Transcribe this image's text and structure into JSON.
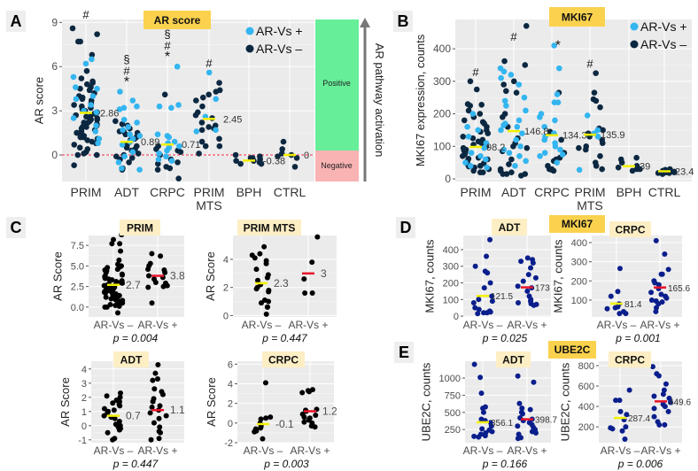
{
  "colors": {
    "ar_vs_pos": "#33b5f0",
    "ar_vs_neg": "#0c2841",
    "black_points": "#000000",
    "navy_points": "#0a1e8c",
    "mean_yellow": "#f2f000",
    "mean_red": "#e8132b",
    "panel_bg": "#ebebeb",
    "title_box_main": "#fbd24e",
    "title_box_sub": "#fdeec4",
    "positive": "#66ee99",
    "negative": "#f9b3b3",
    "zero_line": "#f08a9a"
  },
  "letters": {
    "A": "A",
    "B": "B",
    "C": "C",
    "D": "D",
    "E": "E"
  },
  "legend": {
    "pos": "AR-Vs +",
    "neg": "AR-Vs –"
  },
  "side_scale": {
    "positive": "Positive",
    "negative": "Negative",
    "arrow_label": "AR pathway activation"
  },
  "section_titles": {
    "D": "MKI67",
    "E": "UBE2C"
  },
  "chart_data": [
    {
      "id": "A",
      "type": "scatter",
      "title": "AR score",
      "ylabel": "AR score",
      "ylim": [
        -1.8,
        9.2
      ],
      "yticks": [
        "0",
        "3",
        "6",
        "9"
      ],
      "grid": true,
      "legend": "top-right",
      "reference_line": 0,
      "categories": [
        "PRIM",
        "ADT",
        "CRPC",
        "PRIM MTS",
        "BPH",
        "CTRL"
      ],
      "annotations": [
        [
          "#"
        ],
        [
          "§",
          "#",
          "*"
        ],
        [
          "§",
          "#",
          "*"
        ],
        [
          "#"
        ],
        [],
        []
      ],
      "means": [
        2.86,
        0.89,
        0.71,
        2.45,
        -0.38,
        0
      ],
      "mean_labels": [
        "2.86",
        "0.89",
        "0.71",
        "2.45",
        "-0.38",
        "0"
      ],
      "series": [
        {
          "name": "AR-Vs –",
          "values": [
            [
              8.6,
              8.2,
              7.7,
              7.7,
              6.8,
              5.7,
              5.2,
              5.0,
              4.9,
              4.8,
              4.6,
              4.4,
              4.2,
              4.0,
              3.9,
              3.7,
              3.5,
              3.4,
              3.2,
              3.0,
              2.9,
              2.8,
              2.7,
              2.6,
              2.5,
              2.4,
              2.3,
              2.2,
              2.1,
              2.0,
              1.9,
              1.8,
              1.7,
              1.6,
              1.5,
              1.4,
              1.3,
              1.2,
              1.1,
              1.0,
              0.9,
              0.8,
              0.7,
              0.5,
              0.4,
              0.2,
              0.1,
              0,
              0,
              -0.7,
              3.1,
              3.3,
              2.6,
              2.4,
              1.9,
              1.5,
              1.2,
              4.5,
              3.8,
              2.2
            ],
            [
              2.1,
              2.0,
              1.8,
              1.6,
              1.5,
              1.4,
              1.2,
              1.0,
              0.9,
              0.7,
              0.5,
              0.3,
              0.1,
              0,
              -0.2,
              -0.3,
              -0.5,
              -0.9,
              -1.0,
              1.6,
              1.1,
              0.6,
              -0.1,
              0.4,
              2.3
            ],
            [
              4.1,
              0.6,
              0.4,
              0.2,
              0,
              -0.3,
              -0.6,
              -0.8,
              -0.9,
              -1.0,
              -1.6,
              -0.5,
              0.3
            ],
            [
              4.9,
              4.4,
              4.3,
              3.9,
              3.7,
              3.3,
              2.9,
              2.7,
              2.5,
              2.2,
              2.0,
              1.9,
              1.8,
              1.7,
              1.1,
              0.9,
              0.6,
              0.6,
              0.1,
              4.1
            ],
            [
              0,
              -0.1,
              -0.2,
              -0.3,
              -0.4,
              -0.5,
              -0.6,
              -0.6,
              -0.2,
              -0.4
            ],
            [
              0.9,
              0.4,
              0.1,
              0,
              -0.1,
              -0.2,
              -0.8
            ]
          ]
        },
        {
          "name": "AR-Vs +",
          "values": [
            [
              6.5,
              6.2,
              5.3,
              4.6,
              4.5,
              3.8,
              3.4,
              2.9,
              2.5,
              2.0,
              1.6,
              1.1,
              0.8,
              4.0,
              3.0
            ],
            [
              4.3,
              3.7,
              3.3,
              3.2,
              3.1,
              2.4,
              2.2,
              1.9,
              1.7,
              1.4,
              1.1,
              0.7,
              0.2,
              -0.1,
              -0.5,
              -0.9,
              -1.0,
              1.3,
              0.9
            ],
            [
              6.0,
              3.4,
              3.3,
              3.2,
              1.4,
              1.3,
              1.2,
              0.9,
              0.6,
              0.3,
              0.1,
              -0.1,
              -0.3,
              -0.4,
              0.8,
              0.5
            ],
            [
              5.6,
              3.8,
              2.6,
              1.7,
              1.6
            ],
            [],
            []
          ]
        }
      ]
    },
    {
      "id": "B",
      "type": "scatter",
      "title": "MKI67",
      "ylabel": "MKI67 expression, counts",
      "ylim": [
        -8,
        490
      ],
      "yticks": [
        "0",
        "100",
        "200",
        "300",
        "400"
      ],
      "grid": true,
      "legend": "top-right",
      "categories": [
        "PRIM",
        "ADT",
        "CRPC",
        "PRIM MTS",
        "BPH",
        "CTRL"
      ],
      "annotations": [
        [
          "#"
        ],
        [
          "#"
        ],
        [
          "*"
        ],
        [
          "#"
        ],
        [],
        []
      ],
      "means": [
        98.2,
        146.8,
        134.3,
        135.9,
        39,
        23.4
      ],
      "mean_labels": [
        "98.2",
        "146.8",
        "134.3",
        "135.9",
        "39",
        "23.4"
      ],
      "series": [
        {
          "name": "AR-Vs –",
          "values": [
            [
              300,
              275,
              230,
              228,
              225,
              210,
              200,
              190,
              180,
              175,
              170,
              160,
              150,
              145,
              140,
              130,
              120,
              115,
              110,
              100,
              95,
              90,
              85,
              80,
              75,
              70,
              65,
              60,
              55,
              50,
              45,
              40,
              38,
              35,
              30,
              25,
              20,
              20,
              125,
              105,
              88,
              62,
              48
            ],
            [
              470,
              362,
              350,
              300,
              290,
              270,
              265,
              200,
              190,
              160,
              125,
              110,
              100,
              95,
              85,
              60,
              45,
              30,
              25,
              20,
              15,
              15,
              15,
              10
            ],
            [
              265,
              145,
              120,
              80,
              65,
              60,
              55,
              40,
              30,
              30,
              28,
              25
            ],
            [
              325,
              265,
              245,
              240,
              220,
              155,
              150,
              140,
              130,
              120,
              110,
              100,
              95,
              90,
              70,
              50,
              40,
              30
            ],
            [
              65,
              60,
              50,
              40,
              35,
              30,
              30,
              25
            ],
            [
              30,
              28,
              25,
              22,
              20,
              20,
              18,
              18,
              15
            ]
          ]
        },
        {
          "name": "AR-Vs +",
          "values": [
            [
              200,
              160,
              150,
              130,
              110,
              95,
              80,
              70,
              60,
              50,
              40,
              35
            ],
            [
              340,
              330,
              320,
              310,
              290,
              250,
              240,
              225,
              210,
              180,
              170,
              165,
              160,
              150,
              140,
              120,
              100,
              90,
              80,
              70,
              55,
              40
            ],
            [
              410,
              340,
              260,
              235,
              235,
              200,
              190,
              180,
              160,
              140,
              130,
              120,
              110,
              100,
              90,
              80,
              75,
              70,
              50
            ],
            [
              195,
              150,
              140,
              130,
              28
            ],
            [],
            []
          ]
        }
      ]
    },
    {
      "id": "C1",
      "type": "scatter",
      "title": "PRIM",
      "ylabel": "AR Score",
      "ylim": [
        -1.2,
        8.7
      ],
      "yticks": [
        "0.0",
        "2.5",
        "5.0",
        "7.5"
      ],
      "grid": true,
      "categories": [
        "AR-Vs –",
        "AR-Vs +"
      ],
      "p_value": "p = 0.004",
      "means": [
        2.7,
        3.8
      ],
      "mean_labels": [
        "2.7",
        "3.8"
      ],
      "values": [
        [
          8.8,
          8.2,
          7.7,
          7.7,
          6.8,
          5.7,
          5.2,
          5.0,
          4.9,
          4.8,
          4.6,
          4.4,
          4.2,
          4.0,
          3.9,
          3.7,
          3.5,
          3.4,
          3.2,
          3.0,
          2.9,
          2.8,
          2.7,
          2.6,
          2.5,
          2.4,
          2.3,
          2.2,
          2.1,
          2.0,
          1.9,
          1.8,
          1.7,
          1.6,
          1.5,
          1.4,
          1.3,
          1.2,
          1.1,
          1.0,
          0.9,
          0.8,
          0.7,
          0.5,
          0.4,
          0.2,
          0.1,
          0,
          0,
          -0.7,
          3.1,
          3.3,
          2.6,
          1.9,
          1.5,
          1.2,
          4.5,
          3.8,
          2.2,
          0.3
        ],
        [
          6.5,
          6.2,
          5.3,
          5.0,
          4.6,
          4.5,
          4.2,
          3.8,
          3.6,
          3.4,
          3.0,
          2.9,
          2.5,
          2.4,
          2.6,
          0.5
        ]
      ]
    },
    {
      "id": "C2",
      "type": "scatter",
      "title": "PRIM MTS",
      "ylabel": "AR Score",
      "ylim": [
        -0.1,
        5.7
      ],
      "yticks": [
        "0",
        "2",
        "4"
      ],
      "grid": true,
      "categories": [
        "AR-Vs –",
        "AR-Vs +"
      ],
      "p_value": "p = 0.447",
      "means": [
        2.3,
        3
      ],
      "mean_labels": [
        "2.3",
        "3"
      ],
      "values": [
        [
          4.9,
          4.4,
          4.3,
          4.1,
          3.9,
          3.7,
          3.3,
          2.9,
          2.7,
          2.5,
          2.2,
          2.0,
          1.9,
          1.8,
          1.7,
          1.1,
          0.9,
          1.0,
          0.6,
          0.6,
          0.1
        ],
        [
          5.6,
          3.8,
          2.6,
          1.6,
          1.6
        ]
      ]
    },
    {
      "id": "C3",
      "type": "scatter",
      "title": "ADT",
      "ylabel": "AR Score",
      "ylim": [
        -1.2,
        4.55
      ],
      "yticks": [
        "-1",
        "0",
        "1",
        "2",
        "3",
        "4"
      ],
      "grid": true,
      "categories": [
        "AR-Vs –",
        "AR-Vs +"
      ],
      "p_value": "p = 0.447",
      "means": [
        0.7,
        1.1
      ],
      "mean_labels": [
        "0.7",
        "1.1"
      ],
      "values": [
        [
          2.3,
          2.1,
          2.0,
          1.8,
          1.7,
          1.6,
          1.5,
          1.4,
          1.2,
          1.0,
          0.9,
          0.7,
          0.5,
          0.3,
          0.1,
          0,
          -0.2,
          -0.3,
          -0.5,
          -0.9,
          -1.0,
          0.6,
          1.1,
          -0.1
        ],
        [
          4.3,
          3.7,
          3.3,
          3.2,
          2.4,
          2.2,
          1.9,
          1.7,
          1.4,
          1.1,
          0.7,
          0.5,
          0.2,
          -0.1,
          -0.4,
          -0.5,
          -0.9,
          -1.0,
          1.3,
          0.9,
          2.6
        ]
      ]
    },
    {
      "id": "C4",
      "type": "scatter",
      "title": "CRPC",
      "ylabel": "AR Score",
      "ylim": [
        -2,
        6.3
      ],
      "yticks": [
        "-2",
        "0",
        "2",
        "4",
        "6"
      ],
      "grid": true,
      "categories": [
        "AR-Vs –",
        "AR-Vs +"
      ],
      "p_value": "p = 0.003",
      "means": [
        -0.1,
        1.2
      ],
      "mean_labels": [
        "-0.1",
        "1.2"
      ],
      "values": [
        [
          4.1,
          0.6,
          0.5,
          0.4,
          0,
          -0.3,
          -0.6,
          -0.8,
          -0.9,
          -1.6,
          -0.5
        ],
        [
          6.0,
          3.4,
          3.3,
          3.2,
          3.1,
          1.4,
          1.3,
          1.2,
          0.9,
          0.6,
          0.3,
          0.1,
          0,
          -0.3,
          -0.4,
          0.8,
          0.5
        ]
      ]
    },
    {
      "id": "D1",
      "type": "scatter",
      "title": "ADT",
      "ylabel": "MKI67, counts",
      "ylim": [
        -5,
        485
      ],
      "yticks": [
        "0",
        "100",
        "200",
        "300",
        "400"
      ],
      "grid": true,
      "categories": [
        "AR-Vs –",
        "AR-Vs +"
      ],
      "p_value": "p = 0.025",
      "means": [
        121.5,
        173
      ],
      "mean_labels": [
        "121.5",
        "173"
      ],
      "values": [
        [
          460,
          360,
          300,
          270,
          260,
          200,
          170,
          120,
          100,
          90,
          80,
          50,
          40,
          30,
          25,
          20,
          20,
          15
        ],
        [
          350,
          340,
          330,
          320,
          290,
          250,
          230,
          210,
          180,
          170,
          150,
          120,
          100,
          90,
          80,
          75,
          70,
          65
        ]
      ]
    },
    {
      "id": "D2",
      "type": "scatter",
      "title": "CRPC",
      "ylabel": "MKI67, counts",
      "ylim": [
        12,
        437
      ],
      "yticks": [
        "100",
        "200",
        "300",
        "400"
      ],
      "grid": true,
      "categories": [
        "AR-Vs –",
        "AR-Vs +"
      ],
      "p_value": "p = 0.001",
      "means": [
        81.4,
        165.6
      ],
      "mean_labels": [
        "81.4",
        "165.6"
      ],
      "values": [
        [
          265,
          145,
          120,
          80,
          65,
          60,
          55,
          40,
          30,
          30
        ],
        [
          410,
          340,
          260,
          235,
          235,
          200,
          190,
          180,
          160,
          140,
          130,
          120,
          110,
          100,
          95,
          90,
          80,
          60,
          40
        ]
      ]
    },
    {
      "id": "E1",
      "type": "scatter",
      "title": "ADT",
      "ylabel": "UBE2C, counts",
      "ylim": [
        58,
        1246
      ],
      "yticks": [
        "250",
        "500",
        "750",
        "1000"
      ],
      "grid": true,
      "categories": [
        "AR-Vs –",
        "AR-Vs +"
      ],
      "p_value": "p = 0.166",
      "means": [
        356.1,
        398.7
      ],
      "mean_labels": [
        "356.1",
        "398.7"
      ],
      "values": [
        [
          1200,
          1010,
          780,
          580,
          560,
          500,
          400,
          380,
          350,
          300,
          260,
          240,
          220,
          200,
          180,
          160,
          150,
          140
        ],
        [
          1030,
          940,
          630,
          560,
          540,
          500,
          480,
          420,
          400,
          380,
          350,
          320,
          300,
          280,
          250,
          220,
          200,
          180,
          130,
          120
        ]
      ]
    },
    {
      "id": "E2",
      "type": "scatter",
      "title": "CRPC",
      "ylabel": "UBE2C, counts",
      "ylim": [
        45,
        843
      ],
      "yticks": [
        "200",
        "400",
        "600",
        "800"
      ],
      "grid": true,
      "categories": [
        "AR-Vs –",
        "AR-Vs +"
      ],
      "p_value": "p = 0.006",
      "means": [
        287.4,
        449.6
      ],
      "mean_labels": [
        "287.4",
        "449.6"
      ],
      "values": [
        [
          560,
          460,
          460,
          350,
          320,
          270,
          200,
          190,
          180,
          160,
          80
        ],
        [
          790,
          720,
          700,
          620,
          560,
          520,
          500,
          480,
          440,
          420,
          400,
          380,
          350,
          300,
          250,
          220,
          220
        ]
      ]
    }
  ]
}
